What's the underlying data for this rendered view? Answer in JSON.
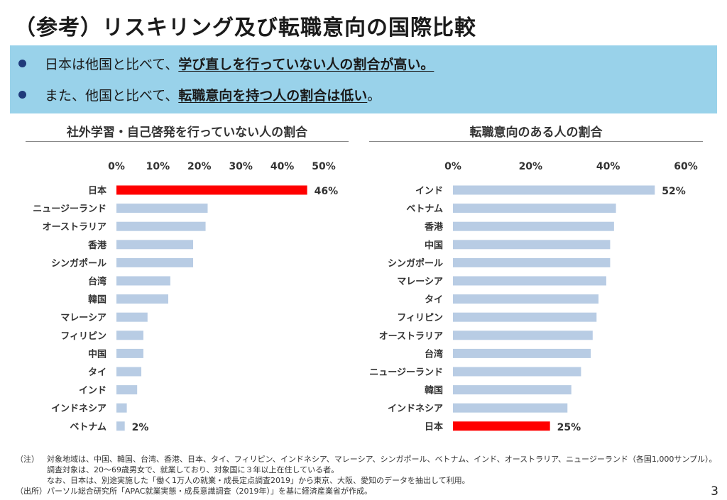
{
  "title": "（参考）リスキリング及び転職意向の国際比較",
  "bullets": [
    {
      "prefix": "日本は他国と比べて、",
      "emphasis": "学び直しを行っていない人の割合が高い。",
      "suffix": ""
    },
    {
      "prefix": "また、他国と比べて、",
      "emphasis": "転職意向を持つ人の割合は低い",
      "suffix": "。"
    }
  ],
  "colors": {
    "bar": "#b8cce4",
    "highlight": "#ff0000",
    "banner": "#99d2ea",
    "bullet": "#1f3a7a"
  },
  "chart_data": [
    {
      "type": "bar",
      "orientation": "horizontal",
      "title": "社外学習・自己啓発を行っていない人の割合",
      "xlim": [
        0,
        50
      ],
      "ticks": [
        0,
        10,
        20,
        30,
        40,
        50
      ],
      "tick_labels": [
        "0%",
        "10%",
        "20%",
        "30%",
        "40%",
        "50%"
      ],
      "categories": [
        "日本",
        "ニュージーランド",
        "オーストラリア",
        "香港",
        "シンガポール",
        "台湾",
        "韓国",
        "マレーシア",
        "フィリピン",
        "中国",
        "タイ",
        "インド",
        "インドネシア",
        "ベトナム"
      ],
      "values": [
        46,
        22,
        21.5,
        18.5,
        18.5,
        13,
        12.5,
        7.5,
        6.5,
        6.5,
        6,
        5,
        2.5,
        2
      ],
      "highlight": "日本",
      "data_labels": {
        "0": "46%",
        "13": "2%"
      }
    },
    {
      "type": "bar",
      "orientation": "horizontal",
      "title": "転職意向のある人の割合",
      "xlim": [
        0,
        60
      ],
      "ticks": [
        0,
        20,
        40,
        60
      ],
      "tick_labels": [
        "0%",
        "20%",
        "40%",
        "60%"
      ],
      "categories": [
        "インド",
        "ベトナム",
        "香港",
        "中国",
        "シンガポール",
        "マレーシア",
        "タイ",
        "フィリピン",
        "オーストラリア",
        "台湾",
        "ニュージーランド",
        "韓国",
        "インドネシア",
        "日本"
      ],
      "values": [
        52,
        42,
        41.5,
        40.5,
        40.5,
        39.5,
        37.5,
        37,
        36,
        35.5,
        33,
        30.5,
        29.5,
        25
      ],
      "highlight": "日本",
      "data_labels": {
        "0": "52%",
        "13": "25%"
      }
    }
  ],
  "notes": {
    "note_label": "（注）",
    "note_lines": [
      "対象地域は、中国、韓国、台湾、香港、日本、タイ、フィリピン、インドネシア、マレーシア、シンガポール、ベトナム、インド、オーストラリア、ニュージーランド（各国1,000サンプル）。",
      "調査対象は、20～69歳男女で、就業しており、対象国に３年以上在住している者。",
      "なお、日本は、別途実施した「働く1万人の就業・成長定点調査2019」から東京、大阪、愛知のデータを抽出して利用。"
    ],
    "source_label": "（出所）",
    "source_text": "パーソル総合研究所「APAC就業実態・成長意識調査（2019年）」を基に経済産業省が作成。"
  },
  "page_number": "3"
}
